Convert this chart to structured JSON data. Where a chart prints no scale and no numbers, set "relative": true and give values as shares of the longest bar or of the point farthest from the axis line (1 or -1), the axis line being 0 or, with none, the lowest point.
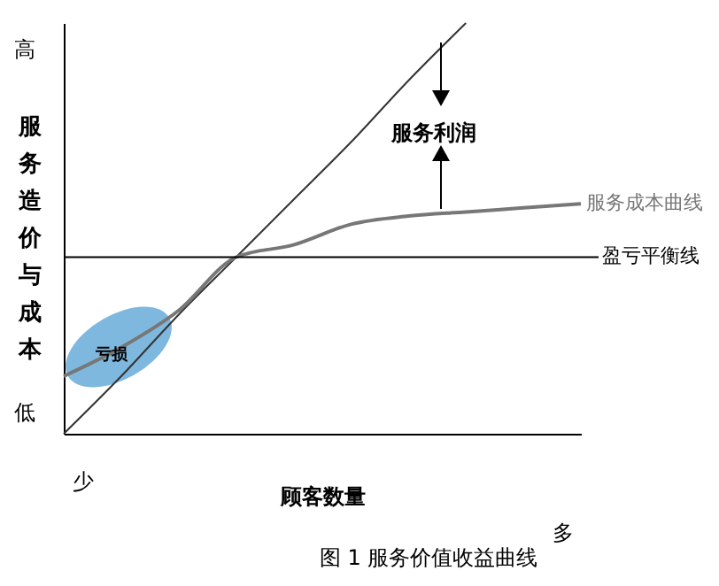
{
  "chart_data": {
    "type": "line",
    "relative": true,
    "title": "图 1 服务价值收益曲线",
    "xlabel": "顾客数量",
    "ylabel": "服务造价与成本",
    "categories": [
      null,
      null,
      null,
      null,
      null,
      null,
      null,
      null,
      null,
      null
    ],
    "series": [
      {
        "color": "#333333",
        "values": [
          0,
          0.14,
          0.29,
          0.43,
          0.57,
          0.71,
          0.86,
          1,
          null,
          null
        ]
      },
      {
        "name": "服务成本曲线",
        "color": "#777777",
        "values": [
          0.14,
          0.21,
          0.3,
          0.43,
          0.46,
          0.51,
          0.53,
          0.54,
          0.55,
          0.56
        ]
      }
    ],
    "ref_lines": [
      {
        "axis": "y",
        "value": 0.43,
        "label": "盈亏平衡线",
        "color": "#000000"
      }
    ],
    "annotations": [
      "服务利润",
      "亏损",
      "高",
      "低",
      "少",
      "多"
    ]
  }
}
